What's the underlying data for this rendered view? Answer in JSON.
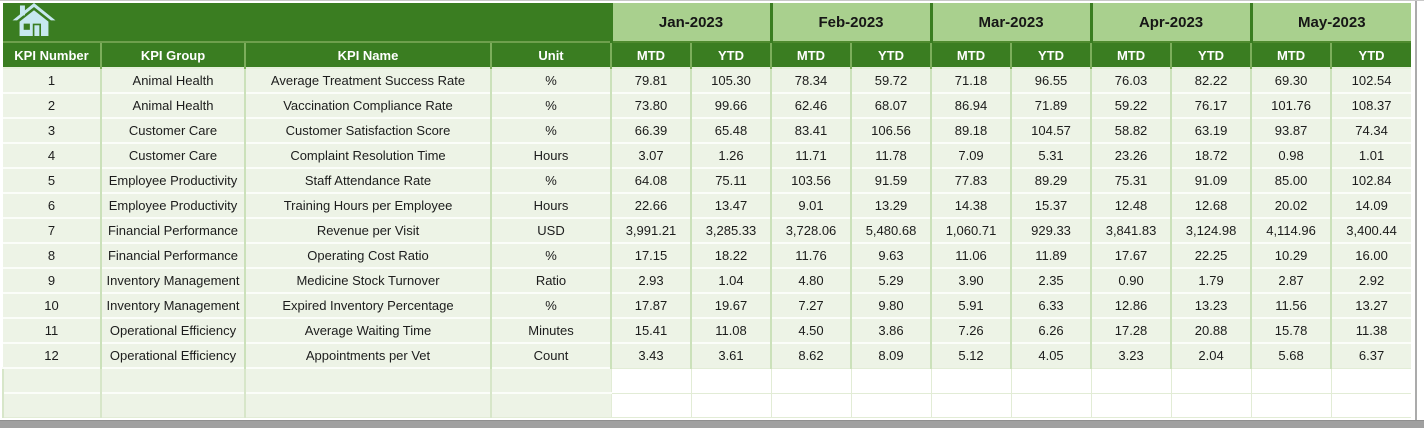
{
  "toolbar": {
    "home_icon": "home-icon"
  },
  "colors": {
    "header_green": "#3A7D21",
    "month_band_green": "#A9D08E",
    "row_light_green": "#EDF3E6",
    "home_icon_blue": "#C7E8EF",
    "window_edge_gray": "#A0A0A0"
  },
  "table": {
    "left_columns": [
      "KPI Number",
      "KPI Group",
      "KPI Name",
      "Unit"
    ],
    "months": [
      "Jan-2023",
      "Feb-2023",
      "Mar-2023",
      "Apr-2023",
      "May-2023"
    ],
    "period_labels": [
      "MTD",
      "YTD"
    ],
    "rows": [
      {
        "num": "1",
        "group": "Animal Health",
        "name": "Average Treatment Success Rate",
        "unit": "%",
        "values": [
          "79.81",
          "105.30",
          "78.34",
          "59.72",
          "71.18",
          "96.55",
          "76.03",
          "82.22",
          "69.30",
          "102.54"
        ]
      },
      {
        "num": "2",
        "group": "Animal Health",
        "name": "Vaccination Compliance Rate",
        "unit": "%",
        "values": [
          "73.80",
          "99.66",
          "62.46",
          "68.07",
          "86.94",
          "71.89",
          "59.22",
          "76.17",
          "101.76",
          "108.37"
        ]
      },
      {
        "num": "3",
        "group": "Customer Care",
        "name": "Customer Satisfaction Score",
        "unit": "%",
        "values": [
          "66.39",
          "65.48",
          "83.41",
          "106.56",
          "89.18",
          "104.57",
          "58.82",
          "63.19",
          "93.87",
          "74.34"
        ]
      },
      {
        "num": "4",
        "group": "Customer Care",
        "name": "Complaint Resolution Time",
        "unit": "Hours",
        "values": [
          "3.07",
          "1.26",
          "11.71",
          "11.78",
          "7.09",
          "5.31",
          "23.26",
          "18.72",
          "0.98",
          "1.01"
        ]
      },
      {
        "num": "5",
        "group": "Employee Productivity",
        "name": "Staff Attendance Rate",
        "unit": "%",
        "values": [
          "64.08",
          "75.11",
          "103.56",
          "91.59",
          "77.83",
          "89.29",
          "75.31",
          "91.09",
          "85.00",
          "102.84"
        ]
      },
      {
        "num": "6",
        "group": "Employee Productivity",
        "name": "Training Hours per Employee",
        "unit": "Hours",
        "values": [
          "22.66",
          "13.47",
          "9.01",
          "13.29",
          "14.38",
          "15.37",
          "12.48",
          "12.68",
          "20.02",
          "14.09"
        ]
      },
      {
        "num": "7",
        "group": "Financial Performance",
        "name": "Revenue per Visit",
        "unit": "USD",
        "values": [
          "3,991.21",
          "3,285.33",
          "3,728.06",
          "5,480.68",
          "1,060.71",
          "929.33",
          "3,841.83",
          "3,124.98",
          "4,114.96",
          "3,400.44"
        ]
      },
      {
        "num": "8",
        "group": "Financial Performance",
        "name": "Operating Cost Ratio",
        "unit": "%",
        "values": [
          "17.15",
          "18.22",
          "11.76",
          "9.63",
          "11.06",
          "11.89",
          "17.67",
          "22.25",
          "10.29",
          "16.00"
        ]
      },
      {
        "num": "9",
        "group": "Inventory Management",
        "name": "Medicine Stock Turnover",
        "unit": "Ratio",
        "values": [
          "2.93",
          "1.04",
          "4.80",
          "5.29",
          "3.90",
          "2.35",
          "0.90",
          "1.79",
          "2.87",
          "2.92"
        ]
      },
      {
        "num": "10",
        "group": "Inventory Management",
        "name": "Expired Inventory Percentage",
        "unit": "%",
        "values": [
          "17.87",
          "19.67",
          "7.27",
          "9.80",
          "5.91",
          "6.33",
          "12.86",
          "13.23",
          "11.56",
          "13.27"
        ]
      },
      {
        "num": "11",
        "group": "Operational Efficiency",
        "name": "Average Waiting Time",
        "unit": "Minutes",
        "values": [
          "15.41",
          "11.08",
          "4.50",
          "3.86",
          "7.26",
          "6.26",
          "17.28",
          "20.88",
          "15.78",
          "11.38"
        ]
      },
      {
        "num": "12",
        "group": "Operational Efficiency",
        "name": "Appointments per Vet",
        "unit": "Count",
        "values": [
          "3.43",
          "3.61",
          "8.62",
          "8.09",
          "5.12",
          "4.05",
          "3.23",
          "2.04",
          "5.68",
          "6.37"
        ]
      }
    ],
    "empty_rows": 2
  }
}
